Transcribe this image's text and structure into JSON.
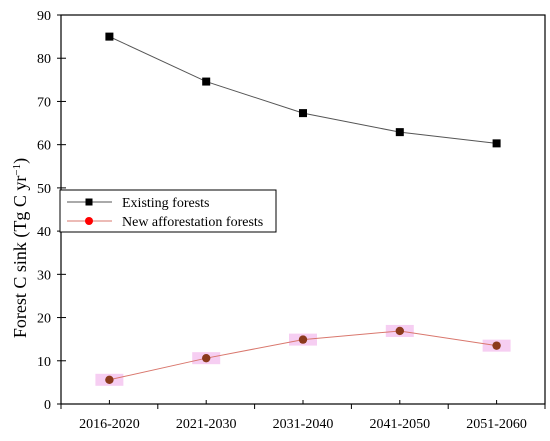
{
  "chart_data": {
    "type": "line",
    "categories": [
      "2016-2020",
      "2021-2030",
      "2031-2040",
      "2041-2050",
      "2051-2060"
    ],
    "series": [
      {
        "name": "Existing forests",
        "values": [
          85.0,
          74.6,
          67.3,
          62.9,
          60.3
        ],
        "color": "#555555",
        "marker": "square",
        "marker_color": "#000000"
      },
      {
        "name": "New afforestation forests",
        "values": [
          5.6,
          10.6,
          14.9,
          16.9,
          13.5
        ],
        "color": "#d9776d",
        "marker": "circle",
        "marker_color": "#ff0000",
        "marker_color_shown": "#8b3a1c",
        "highlight_color": "#f5c6f0"
      }
    ],
    "title": "",
    "xlabel": "",
    "ylabel": "Forest C sink (Tg C yr",
    "ylabel_superscript": "−1",
    "ylabel_close": ")",
    "ylim": [
      0,
      90
    ],
    "yticks": [
      "0",
      "10",
      "20",
      "30",
      "40",
      "50",
      "60",
      "70",
      "80",
      "90"
    ],
    "grid": false,
    "legend_position": "middle-left"
  }
}
